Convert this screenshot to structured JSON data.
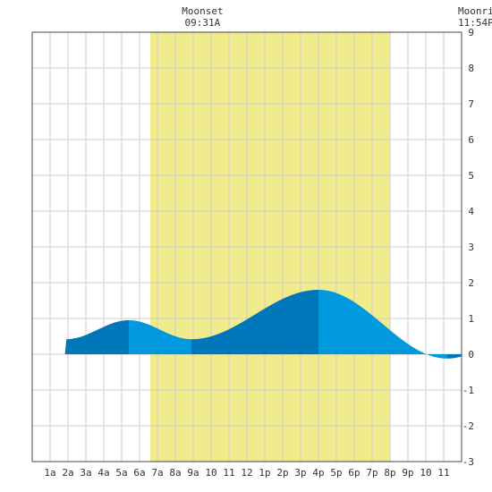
{
  "chart_data": {
    "type": "area",
    "title": "",
    "xlabel": "",
    "ylabel": "",
    "xlim": [
      0,
      24
    ],
    "ylim": [
      -3,
      9
    ],
    "grid": true,
    "x_tick_labels": [
      {
        "x": 1,
        "label": "1a"
      },
      {
        "x": 2,
        "label": "2a"
      },
      {
        "x": 3,
        "label": "3a"
      },
      {
        "x": 4,
        "label": "4a"
      },
      {
        "x": 5,
        "label": "5a"
      },
      {
        "x": 6,
        "label": "6a"
      },
      {
        "x": 7,
        "label": "7a"
      },
      {
        "x": 8,
        "label": "8a"
      },
      {
        "x": 9,
        "label": "9a"
      },
      {
        "x": 10,
        "label": "10"
      },
      {
        "x": 11,
        "label": "11"
      },
      {
        "x": 12,
        "label": "12"
      },
      {
        "x": 13,
        "label": "1p"
      },
      {
        "x": 14,
        "label": "2p"
      },
      {
        "x": 15,
        "label": "3p"
      },
      {
        "x": 16,
        "label": "4p"
      },
      {
        "x": 17,
        "label": "5p"
      },
      {
        "x": 18,
        "label": "6p"
      },
      {
        "x": 19,
        "label": "7p"
      },
      {
        "x": 20,
        "label": "8p"
      },
      {
        "x": 21,
        "label": "9p"
      },
      {
        "x": 22,
        "label": "10"
      },
      {
        "x": 23,
        "label": "11"
      }
    ],
    "y_ticks": [
      -3,
      -2,
      -1,
      0,
      1,
      2,
      3,
      4,
      5,
      6,
      7,
      8,
      9
    ],
    "daylight_band": {
      "start_hour": 6.6,
      "end_hour": 20.0,
      "color": "#f0ec8c"
    },
    "extremes": [
      {
        "type": "high",
        "hour": 5.4,
        "value": 0.95
      },
      {
        "type": "low",
        "hour": 8.9,
        "value": 0.42
      },
      {
        "type": "high",
        "hour": 16.0,
        "value": 1.8
      },
      {
        "type": "low",
        "hour": 23.2,
        "value": -0.12
      }
    ],
    "annotations": [
      {
        "id": "moonset",
        "label": "Moonset",
        "time": "09:31A",
        "hour": 9.52
      },
      {
        "id": "moonrise",
        "label": "Moonrise",
        "time": "11:54P",
        "hour": 23.9
      }
    ],
    "colors": {
      "dark_fill": "#0077bb",
      "light_fill": "#0099dd",
      "grid": "#cccccc",
      "plot_border": "#444444",
      "text": "#333333"
    }
  }
}
